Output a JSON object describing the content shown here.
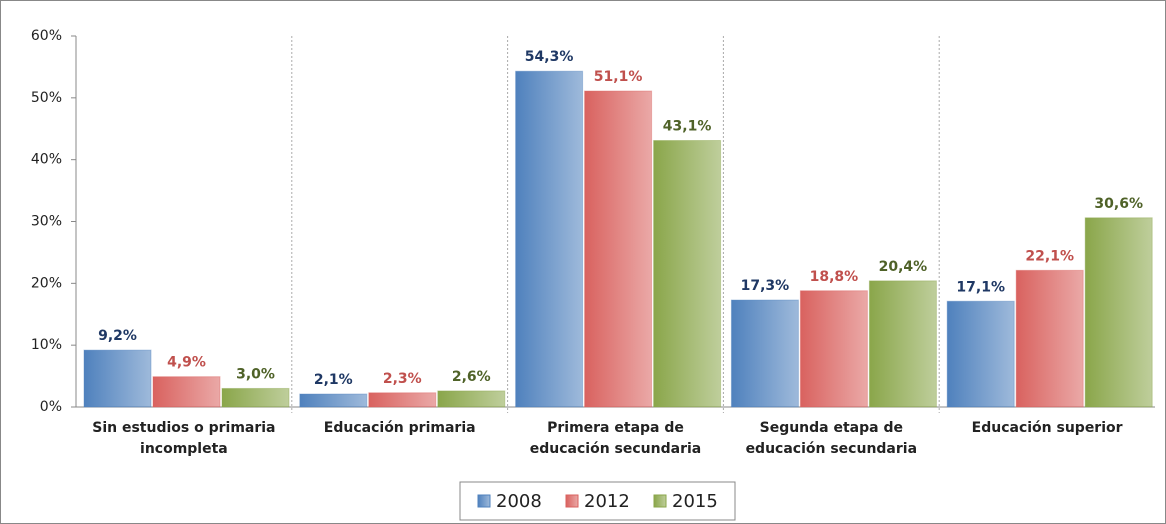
{
  "chart_data": {
    "type": "bar",
    "categories": [
      "Sin estudios o primaria incompleta",
      "Educación primaria",
      "Primera etapa de educación secundaria",
      "Segunda etapa de educación secundaria",
      "Educación superior"
    ],
    "series": [
      {
        "name": "2008",
        "color": "#4f81bd",
        "label_color": "#1f3864",
        "values": [
          9.2,
          2.1,
          54.3,
          17.3,
          17.1
        ],
        "value_labels": [
          "9,2%",
          "2,1%",
          "54,3%",
          "17,3%",
          "17,1%"
        ]
      },
      {
        "name": "2012",
        "color": "#d9625f",
        "label_color": "#c0504d",
        "values": [
          4.9,
          2.3,
          51.1,
          18.8,
          22.1
        ],
        "value_labels": [
          "4,9%",
          "2,3%",
          "51,1%",
          "18,8%",
          "22,1%"
        ]
      },
      {
        "name": "2015",
        "color": "#8aa64a",
        "label_color": "#4f6228",
        "values": [
          3.0,
          2.6,
          43.1,
          20.4,
          30.6
        ],
        "value_labels": [
          "3,0%",
          "2,6%",
          "43,1%",
          "20,4%",
          "30,6%"
        ]
      }
    ],
    "ylim": [
      0,
      60
    ],
    "yticks": [
      {
        "value": 0,
        "label": "0%"
      },
      {
        "value": 10,
        "label": "10%"
      },
      {
        "value": 20,
        "label": "20%"
      },
      {
        "value": 30,
        "label": "30%"
      },
      {
        "value": 40,
        "label": "40%"
      },
      {
        "value": 50,
        "label": "50%"
      },
      {
        "value": 60,
        "label": "60%"
      }
    ],
    "legend": "bottom"
  }
}
